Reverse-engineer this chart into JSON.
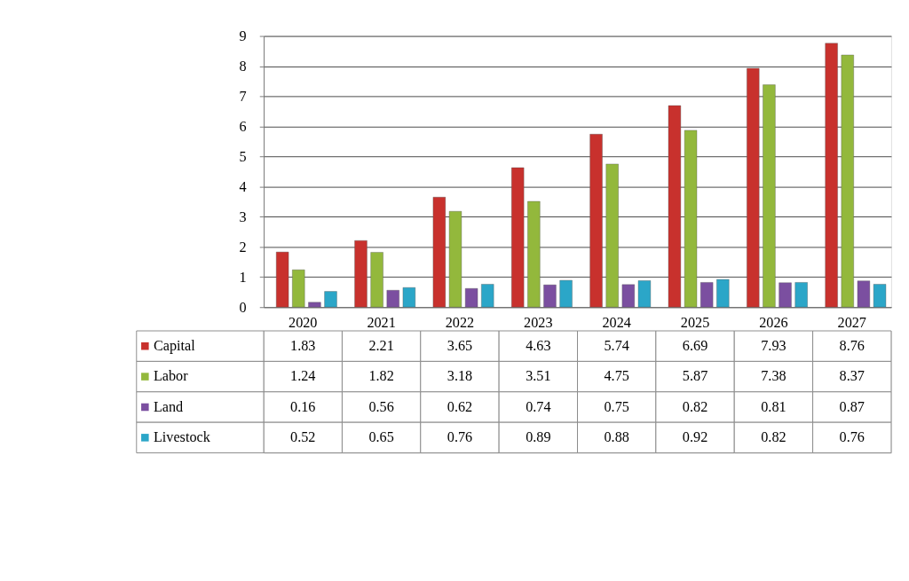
{
  "chart_data": {
    "type": "bar",
    "categories": [
      "2020",
      "2021",
      "2022",
      "2023",
      "2024",
      "2025",
      "2026",
      "2027"
    ],
    "series": [
      {
        "name": "Capital",
        "color": "#c8312d",
        "values": [
          1.83,
          2.21,
          3.65,
          4.63,
          5.74,
          6.69,
          7.93,
          8.76
        ]
      },
      {
        "name": "Labor",
        "color": "#93b83c",
        "values": [
          1.24,
          1.82,
          3.18,
          3.51,
          4.75,
          5.87,
          7.38,
          8.37
        ]
      },
      {
        "name": "Land",
        "color": "#7b4fa0",
        "values": [
          0.16,
          0.56,
          0.62,
          0.74,
          0.75,
          0.82,
          0.81,
          0.87
        ]
      },
      {
        "name": "Livestock",
        "color": "#2ba6c8",
        "values": [
          0.52,
          0.65,
          0.76,
          0.89,
          0.88,
          0.92,
          0.82,
          0.76
        ]
      }
    ],
    "ylim": [
      0,
      9
    ],
    "yticks": [
      0,
      1,
      2,
      3,
      4,
      5,
      6,
      7,
      8,
      9
    ],
    "grid": "y",
    "data_labels": true,
    "legend": "bottom"
  }
}
